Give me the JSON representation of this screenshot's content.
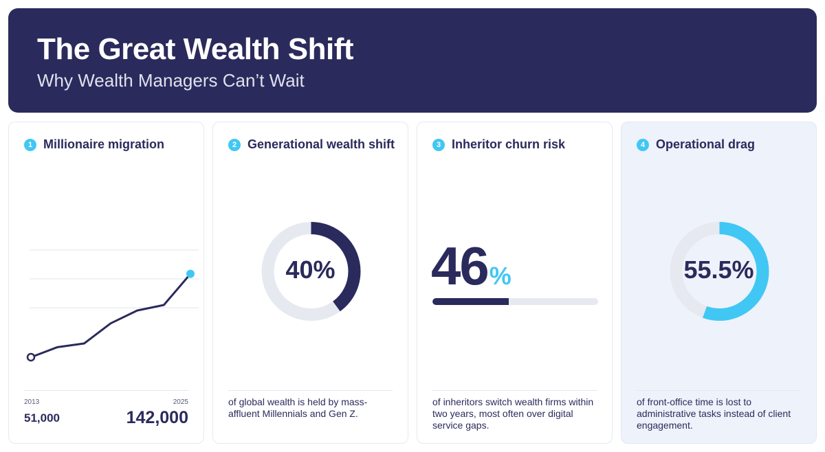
{
  "header": {
    "title": "The Great Wealth Shift",
    "subtitle": "Why Wealth Managers Can’t Wait"
  },
  "colors": {
    "navy": "#2b2a5c",
    "accent": "#41c7f4",
    "track": "#e6e9f0"
  },
  "cards": [
    {
      "number": "1",
      "title": "Millionaire migration",
      "start_year": "2013",
      "end_year": "2025",
      "start_value": "51,000",
      "end_value": "142,000"
    },
    {
      "number": "2",
      "title": "Generational wealth shift",
      "stat": "40%",
      "description": "of global wealth is held by mass-affluent Millennials and Gen Z."
    },
    {
      "number": "3",
      "title": "Inheritor churn risk",
      "stat_number": "46",
      "stat_unit": "%",
      "description": "of inheritors switch wealth firms within two years, most often over digital service gaps."
    },
    {
      "number": "4",
      "title": "Operational drag",
      "stat": "55.5%",
      "description": "of front-office time is lost to administrative tasks instead of client engagement."
    }
  ],
  "chart_data": [
    {
      "type": "line",
      "x": [
        2013,
        2015,
        2017,
        2019,
        2021,
        2023,
        2025
      ],
      "y": [
        51000,
        62000,
        66000,
        88000,
        102000,
        108000,
        142000
      ],
      "ylim": [
        0,
        210000
      ],
      "grid": true
    },
    {
      "type": "pie",
      "values": [
        40,
        60
      ],
      "style": "donut"
    },
    {
      "type": "bar",
      "values": [
        46
      ],
      "ylim": [
        0,
        100
      ],
      "orientation": "horizontal"
    },
    {
      "type": "pie",
      "values": [
        55.5,
        44.5
      ],
      "style": "donut"
    }
  ]
}
